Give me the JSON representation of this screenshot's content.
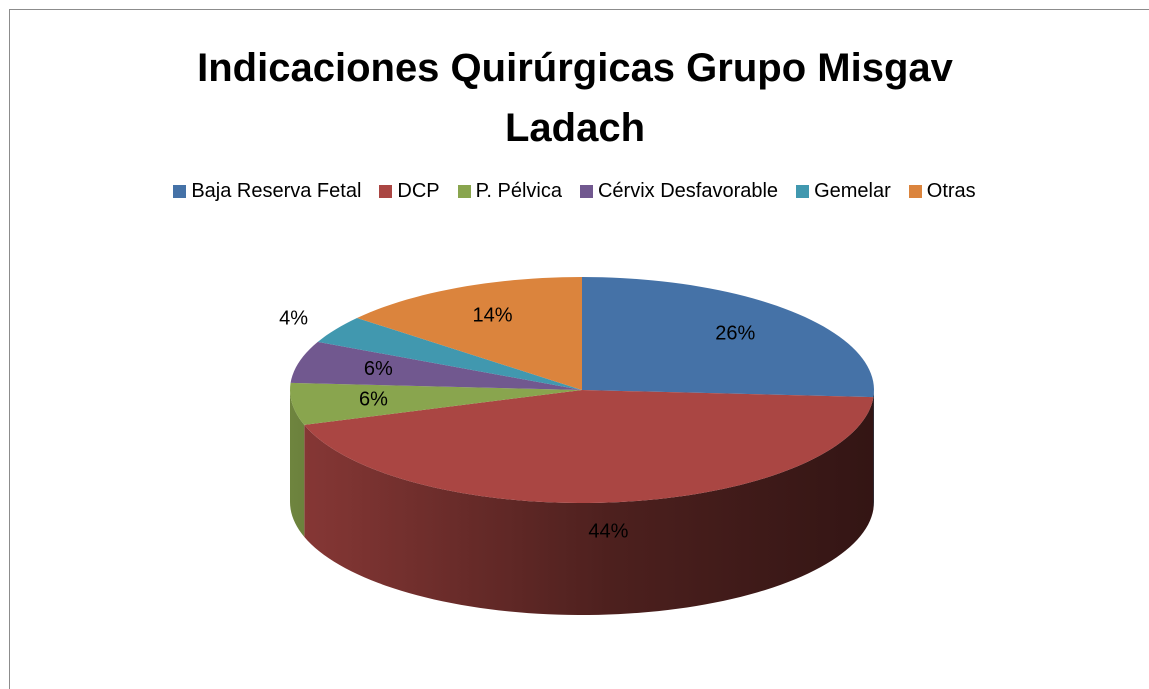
{
  "chart_data": {
    "type": "pie3d",
    "title": "Indicaciones Quirúrgicas Grupo Misgav Ladach",
    "categories": [
      "Baja Reserva Fetal",
      "DCP",
      "P. Pélvica",
      "Cérvix Desfavorable",
      "Gemelar",
      "Otras"
    ],
    "values": [
      26,
      44,
      6,
      6,
      4,
      14
    ],
    "value_labels": [
      "26%",
      "44%",
      "6%",
      "6%",
      "4%",
      "14%"
    ],
    "colors": [
      "#4572a7",
      "#aa4643",
      "#89a54e",
      "#71588f",
      "#4198af",
      "#db843d"
    ],
    "legend": "top"
  }
}
